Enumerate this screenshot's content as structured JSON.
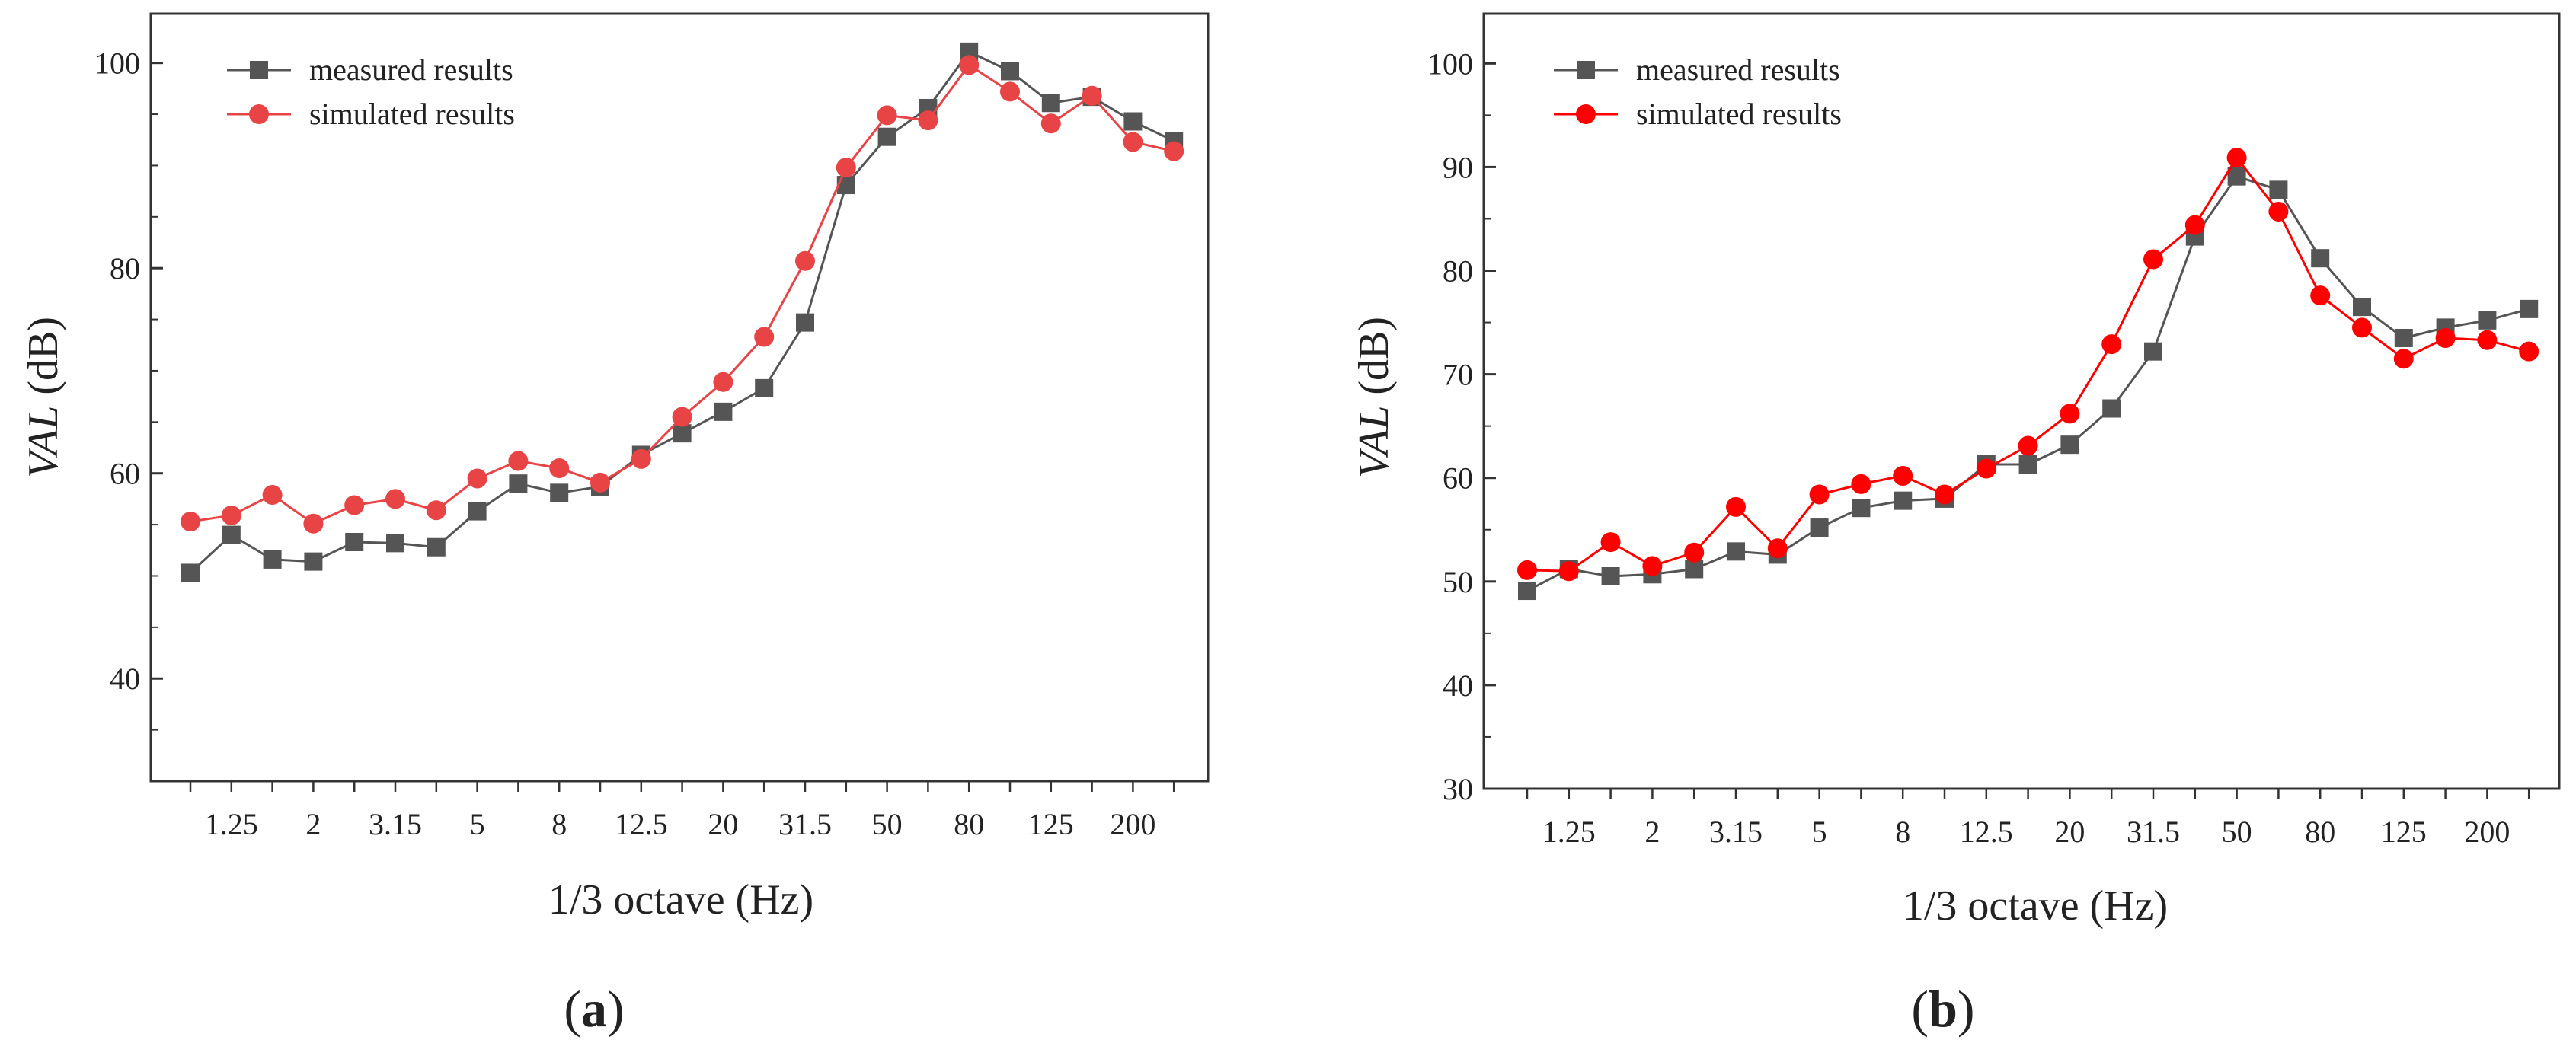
{
  "chart_data": [
    {
      "type": "line",
      "panel": "a",
      "caption_open": "(",
      "caption_letter": "a",
      "caption_close": ")",
      "xlabel": "1/3 octave (Hz)",
      "ylabel_italic": "VAL",
      "ylabel_unit": " (dB)",
      "ylim": [
        30,
        104.8
      ],
      "yticks": [
        40,
        60,
        80,
        100
      ],
      "x_points": 25,
      "x_tick_labels": [
        "1.25",
        "2",
        "3.15",
        "5",
        "8",
        "12.5",
        "20",
        "31.5",
        "50",
        "80",
        "125",
        "200"
      ],
      "x_tick_label_indices": [
        1,
        3,
        5,
        7,
        9,
        11,
        13,
        15,
        17,
        19,
        21,
        23
      ],
      "legend_position": "top-left",
      "series": [
        {
          "name": "measured results",
          "color": "#555555",
          "marker": "square",
          "values": [
            50.3,
            54.0,
            51.6,
            51.4,
            53.3,
            53.2,
            52.8,
            56.3,
            59.0,
            58.1,
            58.7,
            61.8,
            63.9,
            66.0,
            68.3,
            74.7,
            88.1,
            92.8,
            95.6,
            101.1,
            99.2,
            96.1,
            96.7,
            94.3,
            92.4
          ]
        },
        {
          "name": "simulated results",
          "color": "#e84345",
          "marker": "circle",
          "values": [
            55.3,
            55.9,
            57.9,
            55.1,
            56.9,
            57.5,
            56.4,
            59.5,
            61.2,
            60.5,
            59.1,
            61.4,
            65.5,
            68.9,
            73.3,
            80.7,
            89.8,
            94.9,
            94.4,
            99.8,
            97.2,
            94.1,
            96.8,
            92.3,
            91.4
          ]
        }
      ]
    },
    {
      "type": "line",
      "panel": "b",
      "caption_open": "(",
      "caption_letter": "b",
      "caption_close": ")",
      "xlabel": "1/3 octave (Hz)",
      "ylabel_italic": "VAL",
      "ylabel_unit": " (dB)",
      "ylim": [
        30,
        104.8
      ],
      "yticks": [
        30,
        40,
        50,
        60,
        70,
        80,
        90,
        100
      ],
      "x_points": 25,
      "x_tick_labels": [
        "1.25",
        "2",
        "3.15",
        "5",
        "8",
        "12.5",
        "20",
        "31.5",
        "50",
        "80",
        "125",
        "200"
      ],
      "x_tick_label_indices": [
        1,
        3,
        5,
        7,
        9,
        11,
        13,
        15,
        17,
        19,
        21,
        23
      ],
      "legend_position": "top-left",
      "series": [
        {
          "name": "measured results",
          "color": "#555555",
          "marker": "square",
          "values": [
            49.1,
            51.2,
            50.5,
            50.7,
            51.2,
            52.9,
            52.6,
            55.2,
            57.1,
            57.8,
            58.0,
            61.3,
            61.3,
            63.2,
            66.7,
            72.2,
            83.3,
            89.1,
            87.8,
            81.2,
            76.5,
            73.5,
            74.5,
            75.2,
            76.3
          ]
        },
        {
          "name": "simulated results",
          "color": "#ff0000",
          "marker": "circle",
          "values": [
            51.1,
            51.0,
            53.8,
            51.5,
            52.8,
            57.2,
            53.2,
            58.4,
            59.4,
            60.2,
            58.4,
            60.9,
            63.1,
            66.2,
            72.9,
            81.1,
            84.4,
            90.9,
            85.7,
            77.6,
            74.5,
            71.5,
            73.5,
            73.3,
            72.2
          ]
        }
      ]
    }
  ]
}
